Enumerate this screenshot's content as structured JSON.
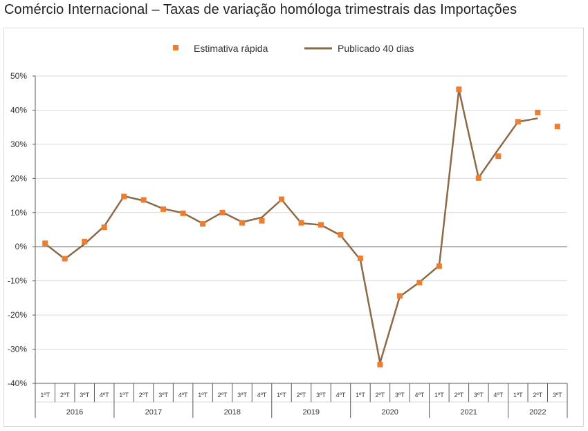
{
  "title": "Comércio Internacional – Taxas de variação homóloga trimestrais das Importações",
  "colors": {
    "line": "#8b6a45",
    "marker": "#ed7d31",
    "grid": "#d9d9d9",
    "axis": "#595959"
  },
  "chart_data": {
    "type": "line",
    "ylim": [
      -40,
      50
    ],
    "ytick_step": 10,
    "ytick_format": "percent",
    "grid": true,
    "legend_position": "top",
    "quarters": [
      "1ºT",
      "2ºT",
      "3ºT",
      "4ºT",
      "1ºT",
      "2ºT",
      "3ºT",
      "4ºT",
      "1ºT",
      "2ºT",
      "3ºT",
      "4ºT",
      "1ºT",
      "2ºT",
      "3ºT",
      "4ºT",
      "1ºT",
      "2ºT",
      "3ºT",
      "4ºT",
      "1ºT",
      "2ºT",
      "3ºT",
      "4ºT",
      "1ºT",
      "2ºT",
      "3ºT"
    ],
    "years": [
      {
        "label": "2016",
        "count": 4
      },
      {
        "label": "2017",
        "count": 4
      },
      {
        "label": "2018",
        "count": 4
      },
      {
        "label": "2019",
        "count": 4
      },
      {
        "label": "2020",
        "count": 4
      },
      {
        "label": "2021",
        "count": 4
      },
      {
        "label": "2022",
        "count": 3
      }
    ],
    "series": [
      {
        "name": "Estimativa rápida",
        "kind": "markers",
        "values": [
          1.0,
          -3.5,
          1.5,
          5.7,
          14.7,
          13.7,
          11.0,
          9.8,
          6.7,
          10.0,
          7.0,
          7.6,
          13.9,
          7.0,
          6.4,
          3.5,
          -3.4,
          -34.5,
          -14.4,
          -10.5,
          -5.7,
          46.1,
          20.1,
          26.5,
          36.6,
          39.3,
          35.2
        ]
      },
      {
        "name": "Publicado 40 dias",
        "kind": "line",
        "values": [
          0.9,
          -3.6,
          0.8,
          6.0,
          14.8,
          13.5,
          11.1,
          9.9,
          6.8,
          10.1,
          7.2,
          8.6,
          13.8,
          6.9,
          6.4,
          3.3,
          -3.8,
          -34.0,
          -14.6,
          -10.4,
          -5.5,
          46.0,
          20.2,
          28.5,
          36.6,
          37.6,
          null
        ]
      }
    ]
  }
}
